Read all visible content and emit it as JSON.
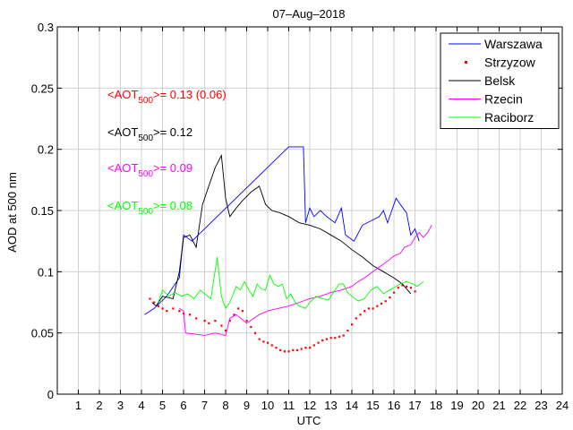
{
  "chart_data": {
    "type": "line",
    "title": "07–Aug–2018",
    "xlabel": "UTC",
    "ylabel": "AOD at 500 nm",
    "xlim": [
      0,
      24
    ],
    "ylim": [
      0,
      0.3
    ],
    "grid": true,
    "x_ticks": [
      1,
      2,
      3,
      4,
      5,
      6,
      7,
      8,
      9,
      10,
      11,
      12,
      13,
      14,
      15,
      16,
      17,
      18,
      19,
      20,
      21,
      22,
      23,
      24
    ],
    "y_ticks": [
      0,
      0.05,
      0.1,
      0.15,
      0.2,
      0.25,
      0.3
    ],
    "y_tick_labels": [
      "0",
      "0.05",
      "0.1",
      "0.15",
      "0.2",
      "0.25",
      "0.3"
    ],
    "legend_position": "top-right",
    "series": [
      {
        "name": "Warszawa",
        "style": "line",
        "color": "#0000ff",
        "points": [
          [
            4.15,
            0.065
          ],
          [
            4.6,
            0.07
          ],
          [
            5.2,
            0.08
          ],
          [
            5.6,
            0.09
          ],
          [
            5.8,
            0.095
          ],
          [
            6.0,
            0.13
          ],
          [
            6.4,
            0.125
          ],
          [
            11.0,
            0.202
          ],
          [
            11.7,
            0.202
          ],
          [
            11.8,
            0.14
          ],
          [
            12.0,
            0.152
          ],
          [
            12.2,
            0.145
          ],
          [
            12.5,
            0.15
          ],
          [
            12.8,
            0.145
          ],
          [
            13.2,
            0.14
          ],
          [
            13.5,
            0.152
          ],
          [
            13.7,
            0.13
          ],
          [
            14.1,
            0.125
          ],
          [
            14.5,
            0.138
          ],
          [
            15.3,
            0.145
          ],
          [
            15.5,
            0.15
          ],
          [
            15.7,
            0.14
          ],
          [
            15.9,
            0.15
          ],
          [
            16.1,
            0.16
          ],
          [
            16.3,
            0.155
          ],
          [
            16.6,
            0.148
          ],
          [
            16.8,
            0.13
          ],
          [
            17.0,
            0.135
          ],
          [
            17.2,
            0.125
          ]
        ]
      },
      {
        "name": "Strzyzow",
        "style": "dots",
        "color": "#ff0000",
        "points": [
          [
            4.4,
            0.078
          ],
          [
            4.6,
            0.075
          ],
          [
            4.8,
            0.072
          ],
          [
            5.0,
            0.07
          ],
          [
            5.2,
            0.068
          ],
          [
            5.5,
            0.07
          ],
          [
            5.8,
            0.068
          ],
          [
            6.0,
            0.066
          ],
          [
            6.3,
            0.065
          ],
          [
            6.6,
            0.062
          ],
          [
            7.0,
            0.06
          ],
          [
            7.2,
            0.058
          ],
          [
            7.5,
            0.06
          ],
          [
            7.8,
            0.056
          ],
          [
            8.0,
            0.052
          ],
          [
            8.2,
            0.06
          ],
          [
            8.4,
            0.065
          ],
          [
            8.6,
            0.07
          ],
          [
            8.8,
            0.068
          ],
          [
            9.0,
            0.06
          ],
          [
            9.2,
            0.055
          ],
          [
            9.4,
            0.05
          ],
          [
            9.6,
            0.045
          ],
          [
            9.8,
            0.043
          ],
          [
            10.0,
            0.042
          ],
          [
            10.2,
            0.04
          ],
          [
            10.4,
            0.038
          ],
          [
            10.6,
            0.036
          ],
          [
            10.8,
            0.035
          ],
          [
            11.0,
            0.035
          ],
          [
            11.2,
            0.036
          ],
          [
            11.4,
            0.036
          ],
          [
            11.6,
            0.037
          ],
          [
            11.8,
            0.038
          ],
          [
            12.0,
            0.038
          ],
          [
            12.2,
            0.04
          ],
          [
            12.4,
            0.042
          ],
          [
            12.6,
            0.044
          ],
          [
            12.8,
            0.045
          ],
          [
            13.0,
            0.046
          ],
          [
            13.2,
            0.046
          ],
          [
            13.4,
            0.047
          ],
          [
            13.6,
            0.048
          ],
          [
            13.8,
            0.052
          ],
          [
            14.0,
            0.057
          ],
          [
            14.2,
            0.062
          ],
          [
            14.4,
            0.065
          ],
          [
            14.6,
            0.068
          ],
          [
            14.8,
            0.07
          ],
          [
            15.0,
            0.07
          ],
          [
            15.2,
            0.072
          ],
          [
            15.4,
            0.074
          ],
          [
            15.6,
            0.076
          ],
          [
            15.8,
            0.079
          ],
          [
            16.0,
            0.083
          ],
          [
            16.2,
            0.087
          ],
          [
            16.4,
            0.089
          ],
          [
            16.6,
            0.088
          ],
          [
            16.8,
            0.087
          ],
          [
            17.0,
            0.084
          ]
        ]
      },
      {
        "name": "Belsk",
        "style": "line",
        "color": "#000000",
        "points": [
          [
            4.5,
            0.075
          ],
          [
            4.7,
            0.072
          ],
          [
            5.0,
            0.08
          ],
          [
            5.5,
            0.078
          ],
          [
            5.8,
            0.1
          ],
          [
            6.0,
            0.128
          ],
          [
            6.3,
            0.13
          ],
          [
            6.6,
            0.12
          ],
          [
            6.9,
            0.155
          ],
          [
            7.2,
            0.17
          ],
          [
            7.5,
            0.185
          ],
          [
            7.8,
            0.195
          ],
          [
            8.0,
            0.16
          ],
          [
            8.2,
            0.145
          ],
          [
            8.5,
            0.152
          ],
          [
            8.8,
            0.158
          ],
          [
            9.2,
            0.165
          ],
          [
            9.6,
            0.17
          ],
          [
            9.9,
            0.155
          ],
          [
            10.2,
            0.15
          ],
          [
            10.6,
            0.148
          ],
          [
            11.0,
            0.145
          ],
          [
            11.5,
            0.14
          ],
          [
            12.0,
            0.138
          ],
          [
            12.5,
            0.135
          ],
          [
            13.0,
            0.13
          ],
          [
            13.5,
            0.125
          ],
          [
            14.0,
            0.118
          ],
          [
            14.5,
            0.112
          ],
          [
            15.0,
            0.105
          ],
          [
            15.5,
            0.1
          ],
          [
            16.0,
            0.095
          ],
          [
            16.4,
            0.09
          ],
          [
            16.8,
            0.082
          ]
        ]
      },
      {
        "name": "Rzecin",
        "style": "line",
        "color": "#ff00ff",
        "points": [
          [
            5.8,
            0.07
          ],
          [
            6.0,
            0.068
          ],
          [
            6.1,
            0.05
          ],
          [
            7.0,
            0.048
          ],
          [
            7.5,
            0.05
          ],
          [
            8.0,
            0.048
          ],
          [
            8.2,
            0.062
          ],
          [
            8.5,
            0.065
          ],
          [
            9.0,
            0.058
          ],
          [
            9.6,
            0.065
          ],
          [
            10.0,
            0.068
          ],
          [
            10.5,
            0.07
          ],
          [
            11.0,
            0.072
          ],
          [
            11.5,
            0.075
          ],
          [
            12.0,
            0.078
          ],
          [
            12.5,
            0.08
          ],
          [
            13.0,
            0.083
          ],
          [
            13.5,
            0.085
          ],
          [
            14.0,
            0.088
          ],
          [
            14.3,
            0.092
          ],
          [
            14.6,
            0.095
          ],
          [
            15.0,
            0.1
          ],
          [
            15.4,
            0.105
          ],
          [
            15.8,
            0.11
          ],
          [
            16.0,
            0.113
          ],
          [
            16.3,
            0.115
          ],
          [
            16.5,
            0.12
          ],
          [
            16.8,
            0.122
          ],
          [
            17.0,
            0.128
          ],
          [
            17.2,
            0.132
          ],
          [
            17.4,
            0.128
          ],
          [
            17.6,
            0.132
          ],
          [
            17.8,
            0.138
          ]
        ]
      },
      {
        "name": "Raciborz",
        "style": "line",
        "color": "#00ff00",
        "points": [
          [
            4.8,
            0.075
          ],
          [
            5.0,
            0.085
          ],
          [
            5.3,
            0.08
          ],
          [
            5.6,
            0.083
          ],
          [
            5.9,
            0.08
          ],
          [
            6.2,
            0.082
          ],
          [
            6.5,
            0.078
          ],
          [
            6.8,
            0.085
          ],
          [
            7.0,
            0.082
          ],
          [
            7.3,
            0.078
          ],
          [
            7.6,
            0.112
          ],
          [
            7.8,
            0.08
          ],
          [
            8.0,
            0.07
          ],
          [
            8.2,
            0.075
          ],
          [
            8.5,
            0.088
          ],
          [
            8.7,
            0.085
          ],
          [
            8.9,
            0.092
          ],
          [
            9.1,
            0.085
          ],
          [
            9.3,
            0.08
          ],
          [
            9.5,
            0.09
          ],
          [
            9.7,
            0.086
          ],
          [
            9.9,
            0.085
          ],
          [
            10.1,
            0.097
          ],
          [
            10.3,
            0.09
          ],
          [
            10.5,
            0.088
          ],
          [
            10.7,
            0.09
          ],
          [
            10.9,
            0.078
          ],
          [
            11.1,
            0.082
          ],
          [
            11.3,
            0.075
          ],
          [
            11.5,
            0.072
          ],
          [
            11.8,
            0.07
          ],
          [
            12.0,
            0.075
          ],
          [
            12.3,
            0.08
          ],
          [
            12.6,
            0.078
          ],
          [
            12.9,
            0.077
          ],
          [
            13.2,
            0.085
          ],
          [
            13.4,
            0.09
          ],
          [
            13.6,
            0.09
          ],
          [
            13.8,
            0.083
          ],
          [
            14.0,
            0.08
          ],
          [
            14.3,
            0.076
          ],
          [
            14.6,
            0.078
          ],
          [
            14.9,
            0.085
          ],
          [
            15.2,
            0.088
          ],
          [
            15.5,
            0.082
          ],
          [
            15.8,
            0.085
          ],
          [
            16.0,
            0.087
          ],
          [
            16.3,
            0.09
          ],
          [
            16.6,
            0.092
          ],
          [
            16.9,
            0.09
          ],
          [
            17.1,
            0.088
          ],
          [
            17.4,
            0.092
          ]
        ]
      }
    ],
    "annotations": [
      {
        "prefix": "<AOT",
        "sub": "500",
        "suffix": ">= 0.13 (0.06)",
        "color": "#ff0000"
      },
      {
        "prefix": "<AOT",
        "sub": "500",
        "suffix": ">= 0.12",
        "color": "#000000"
      },
      {
        "prefix": "<AOT",
        "sub": "500",
        "suffix": ">= 0.09",
        "color": "#ff00ff"
      },
      {
        "prefix": "<AOT",
        "sub": "500",
        "suffix": ">= 0.08",
        "color": "#00ff00"
      }
    ]
  }
}
